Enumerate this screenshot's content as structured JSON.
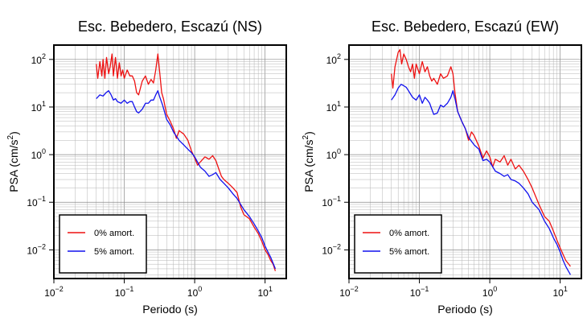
{
  "colors": {
    "red": "#ee1111",
    "blue": "#1111ee"
  },
  "chart_data": [
    {
      "type": "line",
      "title": "Esc. Bebedero, Escazú (NS)",
      "xlabel": "Periodo (s)",
      "ylabel_main": "PSA (cm/s",
      "ylabel_sup": "2",
      "ylabel_end": ")",
      "xscale": "log",
      "yscale": "log",
      "xlim": [
        0.01,
        20
      ],
      "ylim": [
        0.0025,
        200
      ],
      "grid": true,
      "legend_position": "bottom-left",
      "xticks": [
        {
          "value": 0.01,
          "base": "10",
          "exp": "−2"
        },
        {
          "value": 0.1,
          "base": "10",
          "exp": "−1"
        },
        {
          "value": 1,
          "base": "10",
          "exp": "0"
        },
        {
          "value": 10,
          "base": "10",
          "exp": "1"
        }
      ],
      "yticks": [
        {
          "value": 0.01,
          "base": "10",
          "exp": "−2"
        },
        {
          "value": 0.1,
          "base": "10",
          "exp": "−1"
        },
        {
          "value": 1,
          "base": "10",
          "exp": "0"
        },
        {
          "value": 10,
          "base": "10",
          "exp": "1"
        },
        {
          "value": 100,
          "base": "10",
          "exp": "2"
        }
      ],
      "series": [
        {
          "name": "0% amort.",
          "color": "#ee1111",
          "x": [
            0.04,
            0.042,
            0.045,
            0.048,
            0.05,
            0.053,
            0.056,
            0.06,
            0.063,
            0.067,
            0.07,
            0.075,
            0.08,
            0.085,
            0.09,
            0.095,
            0.1,
            0.11,
            0.12,
            0.13,
            0.14,
            0.15,
            0.16,
            0.18,
            0.2,
            0.22,
            0.24,
            0.26,
            0.28,
            0.3,
            0.32,
            0.34,
            0.36,
            0.4,
            0.45,
            0.5,
            0.55,
            0.6,
            0.7,
            0.8,
            0.9,
            1.0,
            1.1,
            1.2,
            1.4,
            1.6,
            1.8,
            2.0,
            2.2,
            2.4,
            2.6,
            3.0,
            3.5,
            4.0,
            4.5,
            5.0,
            6.0,
            7.0,
            8.0,
            9.0,
            10,
            11,
            12,
            13,
            14
          ],
          "y": [
            80,
            40,
            90,
            45,
            100,
            40,
            110,
            50,
            70,
            130,
            45,
            110,
            40,
            85,
            45,
            60,
            40,
            60,
            45,
            45,
            35,
            20,
            18,
            35,
            45,
            30,
            38,
            32,
            60,
            130,
            50,
            20,
            15,
            7,
            5,
            3.5,
            2.2,
            3.2,
            2.7,
            2,
            1.2,
            0.85,
            0.6,
            0.7,
            0.9,
            0.8,
            0.95,
            0.75,
            0.5,
            0.35,
            0.3,
            0.25,
            0.2,
            0.16,
            0.08,
            0.055,
            0.045,
            0.03,
            0.022,
            0.015,
            0.01,
            0.008,
            0.006,
            0.005,
            0.0036
          ]
        },
        {
          "name": "5% amort.",
          "color": "#1111ee",
          "x": [
            0.04,
            0.045,
            0.05,
            0.055,
            0.06,
            0.065,
            0.07,
            0.075,
            0.08,
            0.09,
            0.1,
            0.11,
            0.12,
            0.13,
            0.14,
            0.15,
            0.16,
            0.18,
            0.2,
            0.22,
            0.24,
            0.26,
            0.28,
            0.3,
            0.32,
            0.35,
            0.4,
            0.45,
            0.5,
            0.6,
            0.7,
            0.8,
            0.9,
            1.0,
            1.2,
            1.4,
            1.6,
            1.8,
            2.0,
            2.3,
            2.6,
            3.0,
            3.5,
            4.0,
            4.5,
            5.0,
            6.0,
            7.0,
            8.0,
            9.0,
            10,
            11,
            12,
            14
          ],
          "y": [
            15,
            18,
            17,
            20,
            22,
            18,
            14,
            15,
            13,
            12,
            14,
            12,
            13,
            13,
            10,
            8,
            7.5,
            9,
            12,
            12,
            14,
            14,
            18,
            22,
            16,
            11,
            5.5,
            4.2,
            3,
            2,
            1.6,
            1.3,
            1.1,
            0.9,
            0.55,
            0.45,
            0.35,
            0.38,
            0.42,
            0.3,
            0.25,
            0.2,
            0.15,
            0.12,
            0.09,
            0.07,
            0.05,
            0.035,
            0.025,
            0.018,
            0.012,
            0.009,
            0.007,
            0.004
          ]
        }
      ]
    },
    {
      "type": "line",
      "title": "Esc. Bebedero, Escazú (EW)",
      "xlabel": "Periodo (s)",
      "ylabel_main": "PSA (cm/s",
      "ylabel_sup": "2",
      "ylabel_end": ")",
      "xscale": "log",
      "yscale": "log",
      "xlim": [
        0.01,
        20
      ],
      "ylim": [
        0.0025,
        200
      ],
      "grid": true,
      "legend_position": "bottom-left",
      "xticks": [
        {
          "value": 0.01,
          "base": "10",
          "exp": "−2"
        },
        {
          "value": 0.1,
          "base": "10",
          "exp": "−1"
        },
        {
          "value": 1,
          "base": "10",
          "exp": "0"
        },
        {
          "value": 10,
          "base": "10",
          "exp": "1"
        }
      ],
      "yticks": [
        {
          "value": 0.01,
          "base": "10",
          "exp": "−2"
        },
        {
          "value": 0.1,
          "base": "10",
          "exp": "−1"
        },
        {
          "value": 1,
          "base": "10",
          "exp": "0"
        },
        {
          "value": 10,
          "base": "10",
          "exp": "1"
        },
        {
          "value": 100,
          "base": "10",
          "exp": "2"
        }
      ],
      "series": [
        {
          "name": "0% amort.",
          "color": "#ee1111",
          "x": [
            0.04,
            0.042,
            0.045,
            0.05,
            0.053,
            0.056,
            0.06,
            0.065,
            0.07,
            0.075,
            0.08,
            0.085,
            0.09,
            0.1,
            0.11,
            0.12,
            0.13,
            0.14,
            0.15,
            0.16,
            0.18,
            0.2,
            0.22,
            0.25,
            0.28,
            0.3,
            0.32,
            0.35,
            0.4,
            0.45,
            0.5,
            0.55,
            0.6,
            0.7,
            0.8,
            0.9,
            1.0,
            1.1,
            1.2,
            1.4,
            1.6,
            1.8,
            2.0,
            2.3,
            2.6,
            3.0,
            3.5,
            4.0,
            5.0,
            6.0,
            7.0,
            8.0,
            9.0,
            10,
            11,
            12,
            14
          ],
          "y": [
            50,
            25,
            70,
            140,
            160,
            80,
            130,
            100,
            70,
            55,
            80,
            40,
            80,
            50,
            90,
            55,
            70,
            45,
            35,
            40,
            30,
            50,
            40,
            45,
            70,
            50,
            20,
            8,
            5,
            3.5,
            2,
            3,
            2.5,
            1.5,
            0.85,
            1.2,
            0.9,
            0.55,
            0.8,
            0.7,
            0.95,
            0.6,
            0.8,
            0.5,
            0.6,
            0.45,
            0.3,
            0.2,
            0.09,
            0.05,
            0.04,
            0.025,
            0.016,
            0.011,
            0.008,
            0.006,
            0.0045
          ]
        },
        {
          "name": "5% amort.",
          "color": "#1111ee",
          "x": [
            0.04,
            0.045,
            0.05,
            0.055,
            0.06,
            0.065,
            0.07,
            0.08,
            0.09,
            0.1,
            0.11,
            0.12,
            0.13,
            0.14,
            0.15,
            0.16,
            0.18,
            0.2,
            0.22,
            0.25,
            0.28,
            0.3,
            0.32,
            0.35,
            0.4,
            0.45,
            0.5,
            0.6,
            0.7,
            0.8,
            0.9,
            1.0,
            1.2,
            1.4,
            1.6,
            1.8,
            2.0,
            2.3,
            2.6,
            3.0,
            3.5,
            4.0,
            5.0,
            6.0,
            7.0,
            8.0,
            9.0,
            10,
            11,
            12,
            14
          ],
          "y": [
            14,
            18,
            25,
            30,
            28,
            26,
            22,
            16,
            14,
            18,
            12,
            16,
            14,
            12,
            9,
            7,
            7.5,
            11,
            10,
            12,
            16,
            22,
            15,
            8,
            5,
            3.5,
            2.3,
            1.6,
            1.3,
            0.75,
            0.8,
            0.7,
            0.45,
            0.4,
            0.35,
            0.38,
            0.3,
            0.28,
            0.25,
            0.2,
            0.15,
            0.1,
            0.07,
            0.04,
            0.028,
            0.018,
            0.013,
            0.009,
            0.006,
            0.0045,
            0.003
          ]
        }
      ]
    }
  ]
}
